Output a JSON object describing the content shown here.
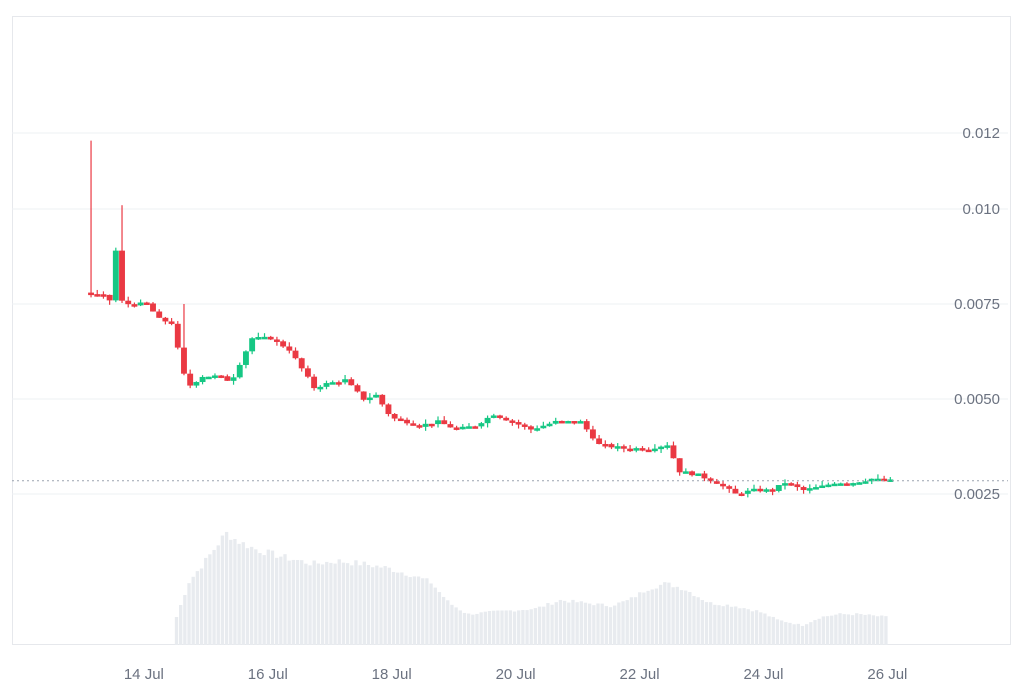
{
  "chart_data": {
    "type": "candlestick",
    "colors": {
      "up": "#16c784",
      "down": "#ea3943",
      "volume": "#e8ebef",
      "grid": "#eef0f3"
    },
    "y_axis": {
      "ticks": [
        {
          "value": 0.0025,
          "label": "0.0025"
        },
        {
          "value": 0.005,
          "label": "0.0050"
        },
        {
          "value": 0.0075,
          "label": "0.0075"
        },
        {
          "value": 0.01,
          "label": "0.010"
        },
        {
          "value": 0.012,
          "label": "0.012"
        }
      ],
      "range": [
        0.0,
        0.0145
      ]
    },
    "x_axis": {
      "ticks": [
        {
          "day": 13.5,
          "label": "14 Jul"
        },
        {
          "day": 15.5,
          "label": "16 Jul"
        },
        {
          "day": 17.5,
          "label": "18 Jul"
        },
        {
          "day": 19.5,
          "label": "20 Jul"
        },
        {
          "day": 21.5,
          "label": "22 Jul"
        },
        {
          "day": 23.5,
          "label": "24 Jul"
        },
        {
          "day": 25.5,
          "label": "26 Jul"
        }
      ],
      "range": [
        12.55,
        27.35
      ]
    },
    "last_price": 0.00285,
    "anchors": [
      [
        12.6,
        0.0078
      ],
      [
        12.9,
        0.0077
      ],
      [
        13.0,
        0.0076
      ],
      [
        13.1,
        0.0089
      ],
      [
        13.15,
        0.0076
      ],
      [
        13.3,
        0.0075
      ],
      [
        13.6,
        0.0075
      ],
      [
        13.8,
        0.0071
      ],
      [
        14.0,
        0.007
      ],
      [
        14.25,
        0.0053
      ],
      [
        14.5,
        0.0056
      ],
      [
        14.75,
        0.0056
      ],
      [
        14.9,
        0.0055
      ],
      [
        15.0,
        0.0056
      ],
      [
        15.3,
        0.0066
      ],
      [
        15.6,
        0.0066
      ],
      [
        15.9,
        0.0063
      ],
      [
        16.1,
        0.0058
      ],
      [
        16.3,
        0.0053
      ],
      [
        16.5,
        0.0054
      ],
      [
        16.8,
        0.0055
      ],
      [
        17.1,
        0.005
      ],
      [
        17.3,
        0.0051
      ],
      [
        17.55,
        0.0045
      ],
      [
        17.8,
        0.0044
      ],
      [
        18.0,
        0.0043
      ],
      [
        18.3,
        0.0044
      ],
      [
        18.6,
        0.0042
      ],
      [
        18.9,
        0.0043
      ],
      [
        19.2,
        0.0046
      ],
      [
        19.5,
        0.0044
      ],
      [
        19.8,
        0.0042
      ],
      [
        20.2,
        0.0044
      ],
      [
        20.6,
        0.0044
      ],
      [
        20.9,
        0.0038
      ],
      [
        21.3,
        0.0037
      ],
      [
        21.7,
        0.0037
      ],
      [
        22.0,
        0.0038
      ],
      [
        22.2,
        0.0031
      ],
      [
        22.5,
        0.003
      ],
      [
        22.8,
        0.0028
      ],
      [
        23.1,
        0.0025
      ],
      [
        23.4,
        0.0026
      ],
      [
        23.7,
        0.0026
      ],
      [
        23.9,
        0.0028
      ],
      [
        24.2,
        0.0026
      ],
      [
        24.5,
        0.0027
      ],
      [
        24.7,
        0.0028
      ],
      [
        25.0,
        0.0028
      ],
      [
        25.3,
        0.0029
      ],
      [
        25.5,
        0.00285
      ]
    ],
    "candle_step_days": 0.1,
    "spikes": [
      {
        "day": 12.6,
        "high": 0.0118
      },
      {
        "day": 13.1,
        "high": 0.0101
      },
      {
        "day": 14.1,
        "high": 0.0075
      }
    ],
    "volume": {
      "start_day": 14.0,
      "end_day": 25.45,
      "levels": [
        [
          14.0,
          0.2
        ],
        [
          14.2,
          0.45
        ],
        [
          14.5,
          0.62
        ],
        [
          14.8,
          0.8
        ],
        [
          15.0,
          0.74
        ],
        [
          15.3,
          0.68
        ],
        [
          15.8,
          0.62
        ],
        [
          16.2,
          0.58
        ],
        [
          16.6,
          0.6
        ],
        [
          17.0,
          0.58
        ],
        [
          17.4,
          0.55
        ],
        [
          17.8,
          0.5
        ],
        [
          18.1,
          0.45
        ],
        [
          18.4,
          0.3
        ],
        [
          18.7,
          0.22
        ],
        [
          19.2,
          0.24
        ],
        [
          19.8,
          0.26
        ],
        [
          20.2,
          0.32
        ],
        [
          20.6,
          0.3
        ],
        [
          21.0,
          0.28
        ],
        [
          21.3,
          0.32
        ],
        [
          21.6,
          0.4
        ],
        [
          21.9,
          0.44
        ],
        [
          22.2,
          0.4
        ],
        [
          22.6,
          0.3
        ],
        [
          23.0,
          0.28
        ],
        [
          23.4,
          0.24
        ],
        [
          23.7,
          0.18
        ],
        [
          24.1,
          0.14
        ],
        [
          24.4,
          0.2
        ],
        [
          24.7,
          0.22
        ],
        [
          25.0,
          0.22
        ],
        [
          25.45,
          0.2
        ]
      ]
    }
  }
}
